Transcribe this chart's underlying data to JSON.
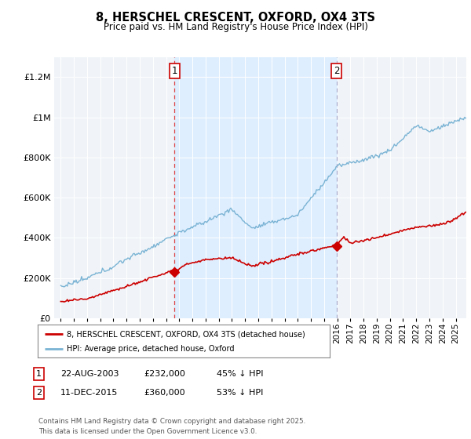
{
  "title": "8, HERSCHEL CRESCENT, OXFORD, OX4 3TS",
  "subtitle": "Price paid vs. HM Land Registry's House Price Index (HPI)",
  "hpi_color": "#7ab3d4",
  "price_color": "#cc0000",
  "vline1_color": "#dd4444",
  "vline2_color": "#aaaacc",
  "shade_color": "#ddeeff",
  "plot_bg": "#f0f4f8",
  "ylim": [
    0,
    1300000
  ],
  "yticks": [
    0,
    200000,
    400000,
    600000,
    800000,
    1000000,
    1200000
  ],
  "xlim_start": 1994.5,
  "xlim_end": 2025.8,
  "legend_labels": [
    "8, HERSCHEL CRESCENT, OXFORD, OX4 3TS (detached house)",
    "HPI: Average price, detached house, Oxford"
  ],
  "sale1_x": 2003.64,
  "sale1_price": 232000,
  "sale1_label": "1",
  "sale2_x": 2015.95,
  "sale2_price": 360000,
  "sale2_label": "2",
  "footer_text": "Contains HM Land Registry data © Crown copyright and database right 2025.\nThis data is licensed under the Open Government Licence v3.0.",
  "table_data": [
    [
      "1",
      "22-AUG-2003",
      "£232,000",
      "45% ↓ HPI"
    ],
    [
      "2",
      "11-DEC-2015",
      "£360,000",
      "53% ↓ HPI"
    ]
  ]
}
